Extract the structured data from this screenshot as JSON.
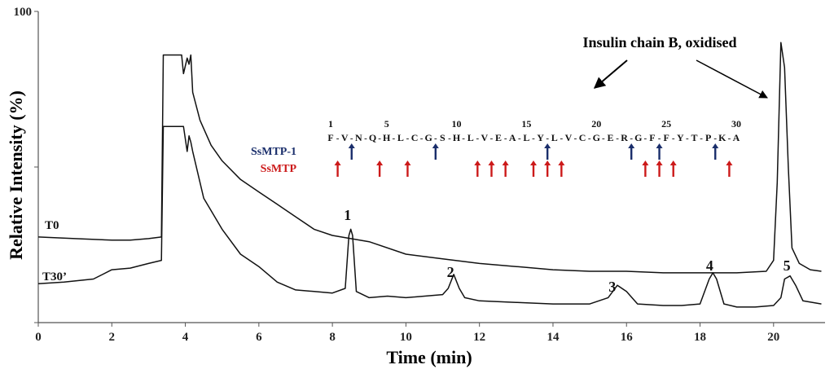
{
  "chart_data": {
    "type": "line",
    "title": "",
    "xlabel": "Time (min)",
    "ylabel": "Relative Intensity (%)",
    "xlim": [
      0,
      21.4
    ],
    "ylim": [
      0,
      100
    ],
    "x_ticks": [
      0,
      2,
      4,
      6,
      8,
      10,
      12,
      14,
      16,
      18,
      20
    ],
    "y_ticks": [
      0,
      50,
      100
    ],
    "y_tick_labels": [
      "",
      "",
      "100"
    ],
    "series": [
      {
        "name": "T0",
        "x": [
          0,
          1,
          2,
          2.5,
          3,
          3.35,
          3.4,
          3.9,
          3.95,
          4.05,
          4.1,
          4.15,
          4.2,
          4.4,
          4.7,
          5,
          5.5,
          6,
          6.5,
          7,
          7.5,
          8,
          9,
          10,
          11,
          12,
          13,
          14,
          15,
          16,
          17,
          18,
          19,
          19.8,
          20.0,
          20.1,
          20.2,
          20.3,
          20.4,
          20.5,
          20.7,
          21,
          21.3
        ],
        "y": [
          27.5,
          27,
          26.5,
          26.5,
          27,
          27.5,
          86,
          86,
          80,
          85,
          83,
          86,
          74,
          65,
          57,
          52,
          46,
          42,
          38,
          34,
          30,
          28,
          26,
          22,
          20.5,
          19,
          18,
          17,
          16.5,
          16.5,
          16,
          16,
          16,
          16.5,
          20,
          45,
          90,
          82,
          50,
          24,
          19,
          17,
          16.5
        ]
      },
      {
        "name": "T30’",
        "x": [
          0,
          0.7,
          1.5,
          2,
          2.5,
          3,
          3.35,
          3.4,
          3.95,
          4.05,
          4.1,
          4.15,
          4.2,
          4.5,
          5,
          5.5,
          6,
          6.5,
          7,
          7.5,
          8,
          8.35,
          8.45,
          8.5,
          8.55,
          8.65,
          9,
          9.5,
          10,
          11,
          11.15,
          11.3,
          11.45,
          11.6,
          12,
          13,
          14,
          15,
          15.5,
          15.75,
          16,
          16.3,
          17,
          17.5,
          18,
          18.25,
          18.35,
          18.45,
          18.65,
          19,
          19.5,
          20,
          20.2,
          20.3,
          20.45,
          20.6,
          20.8,
          21.3
        ],
        "y": [
          12.5,
          13,
          14,
          17,
          17.5,
          19,
          20,
          63,
          63,
          55,
          60,
          58,
          55,
          40,
          30,
          22,
          18,
          13,
          10.5,
          10,
          9.5,
          11,
          28,
          30,
          28,
          10,
          8,
          8.5,
          8,
          9,
          11,
          15.5,
          11,
          8,
          7,
          6.5,
          6,
          6,
          8,
          12,
          10,
          6,
          5.5,
          5.5,
          6,
          14,
          16,
          14,
          6,
          5,
          5,
          5.5,
          8,
          14,
          15,
          12,
          7,
          6
        ]
      }
    ],
    "series_labels": [
      "T0",
      "T30’"
    ],
    "peak_labels": [
      {
        "label": "1",
        "x": 8.5
      },
      {
        "label": "2",
        "x": 11.3
      },
      {
        "label": "3",
        "x": 15.7
      },
      {
        "label": "4",
        "x": 18.35
      },
      {
        "label": "5",
        "x": 20.45
      }
    ],
    "annotation": {
      "text": "Insulin chain B, oxidised",
      "sequence_residues": [
        "F",
        "V",
        "N",
        "Q",
        "H",
        "L",
        "C",
        "G",
        "S",
        "H",
        "L",
        "V",
        "E",
        "A",
        "L",
        "Y",
        "L",
        "V",
        "C",
        "G",
        "E",
        "R",
        "G",
        "F",
        "F",
        "Y",
        "T",
        "P",
        "K",
        "A"
      ],
      "sequence_numbers": [
        "1",
        "5",
        "10",
        "15",
        "20",
        "25",
        "30"
      ],
      "enzymes": [
        {
          "name": "SsMTP-1",
          "color": "#1a2e6b",
          "cleavage_after": [
            2,
            8,
            16,
            22,
            24,
            28
          ]
        },
        {
          "name": "SsMTP",
          "color": "#cc1a1a",
          "cleavage_after": [
            1,
            4,
            6,
            11,
            12,
            13,
            15,
            16,
            17,
            23,
            24,
            25,
            29
          ]
        }
      ]
    }
  }
}
